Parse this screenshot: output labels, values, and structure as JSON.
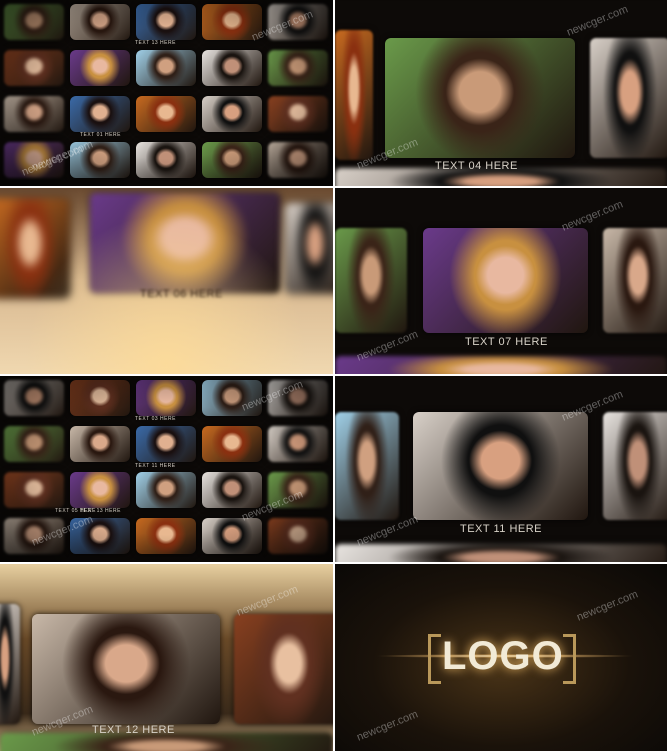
{
  "panels": [
    {
      "captions": [
        "TEXT 13 HERE",
        "TEXT 01 HERE"
      ],
      "watermarks": [
        "newcger.com",
        "newcger.com"
      ]
    },
    {
      "caption": "TEXT 04 HERE",
      "watermarks": [
        "newcger.com",
        "newcger.com"
      ]
    },
    {
      "caption": "TEXT 06 HERE",
      "watermarks": [
        "newcger.com"
      ]
    },
    {
      "caption": "TEXT 07 HERE",
      "watermarks": [
        "newcger.com",
        "newcger.com"
      ]
    },
    {
      "captions": [
        "TEXT 03 HERE",
        "TEXT 13 HERE",
        "TEXT 11 HERE",
        "TEXT 05 HERE"
      ],
      "watermarks": [
        "newcger.com",
        "newcger.com",
        "newcger.com"
      ]
    },
    {
      "caption": "TEXT 11 HERE",
      "watermarks": [
        "newcger.com",
        "newcger.com"
      ]
    },
    {
      "caption": "TEXT 12 HERE",
      "watermarks": [
        "newcger.com",
        "newcger.com"
      ]
    },
    {
      "logo": "LOGO",
      "watermarks": [
        "newcger.com",
        "newcger.com"
      ]
    }
  ]
}
